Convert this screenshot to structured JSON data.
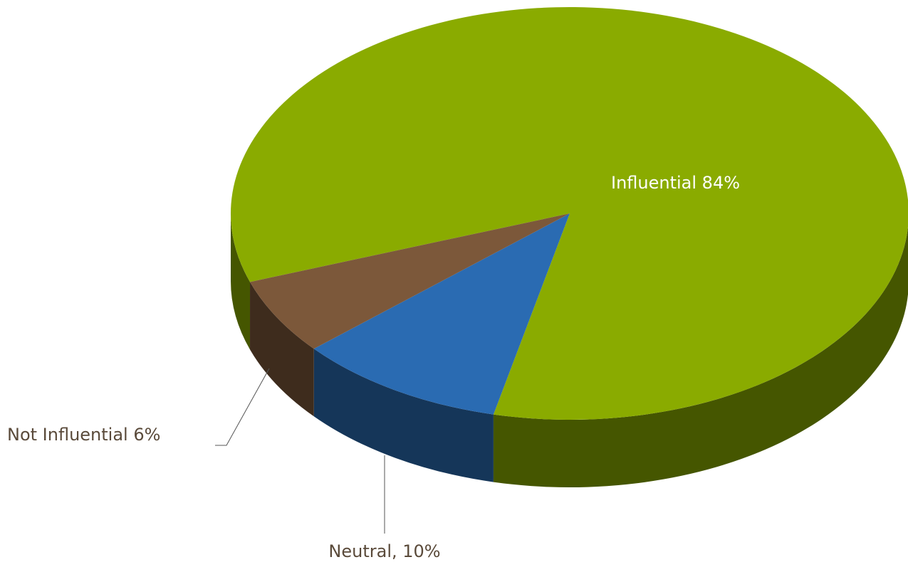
{
  "chart_data": {
    "type": "pie",
    "values": [
      84,
      10,
      6
    ],
    "value_labels": [
      "Influential  84%",
      "Neutral, 10%",
      "Not Influential  6%"
    ],
    "colors": [
      "#8aab00",
      "#2a6bb2",
      "#7c583a"
    ]
  }
}
